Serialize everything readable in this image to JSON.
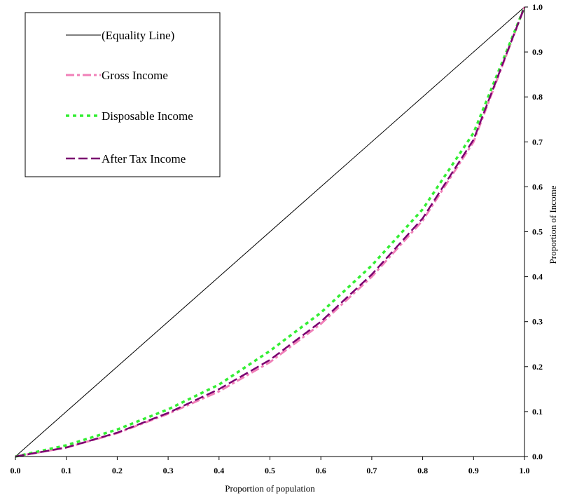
{
  "chart_data": {
    "type": "line",
    "title": "",
    "xlabel": "Proportion of population",
    "ylabel": "Proportion of Income",
    "xlim": [
      0,
      1
    ],
    "ylim": [
      0,
      1
    ],
    "grid": false,
    "legend_position": "top-left",
    "x_ticks": [
      "0.0",
      "0.1",
      "0.2",
      "0.3",
      "0.4",
      "0.5",
      "0.6",
      "0.7",
      "0.8",
      "0.9",
      "1.0"
    ],
    "y_ticks": [
      "0.0",
      "0.1",
      "0.2",
      "0.3",
      "0.4",
      "0.5",
      "0.6",
      "0.7",
      "0.8",
      "0.9",
      "1.0"
    ],
    "series": [
      {
        "name": "(Equality Line)",
        "color": "#000000",
        "style": "solid",
        "x": [
          0.0,
          1.0
        ],
        "y": [
          0.0,
          1.0
        ]
      },
      {
        "name": "Gross Income",
        "color": "#f080b8",
        "style": "dash-dot",
        "x": [
          0.0,
          0.1,
          0.2,
          0.3,
          0.4,
          0.5,
          0.6,
          0.7,
          0.8,
          0.9,
          1.0
        ],
        "y": [
          0.0,
          0.02,
          0.052,
          0.095,
          0.145,
          0.21,
          0.295,
          0.4,
          0.525,
          0.7,
          1.0
        ]
      },
      {
        "name": "Disposable Income",
        "color": "#33ee33",
        "style": "dotted",
        "x": [
          0.0,
          0.1,
          0.2,
          0.3,
          0.4,
          0.5,
          0.6,
          0.7,
          0.8,
          0.9,
          1.0
        ],
        "y": [
          0.0,
          0.025,
          0.06,
          0.105,
          0.16,
          0.235,
          0.32,
          0.425,
          0.55,
          0.72,
          1.0
        ]
      },
      {
        "name": "After Tax Income",
        "color": "#7a0070",
        "style": "dashed",
        "x": [
          0.0,
          0.1,
          0.2,
          0.3,
          0.4,
          0.5,
          0.6,
          0.7,
          0.8,
          0.9,
          1.0
        ],
        "y": [
          0.0,
          0.02,
          0.053,
          0.097,
          0.15,
          0.215,
          0.3,
          0.405,
          0.53,
          0.705,
          1.0
        ]
      }
    ]
  }
}
